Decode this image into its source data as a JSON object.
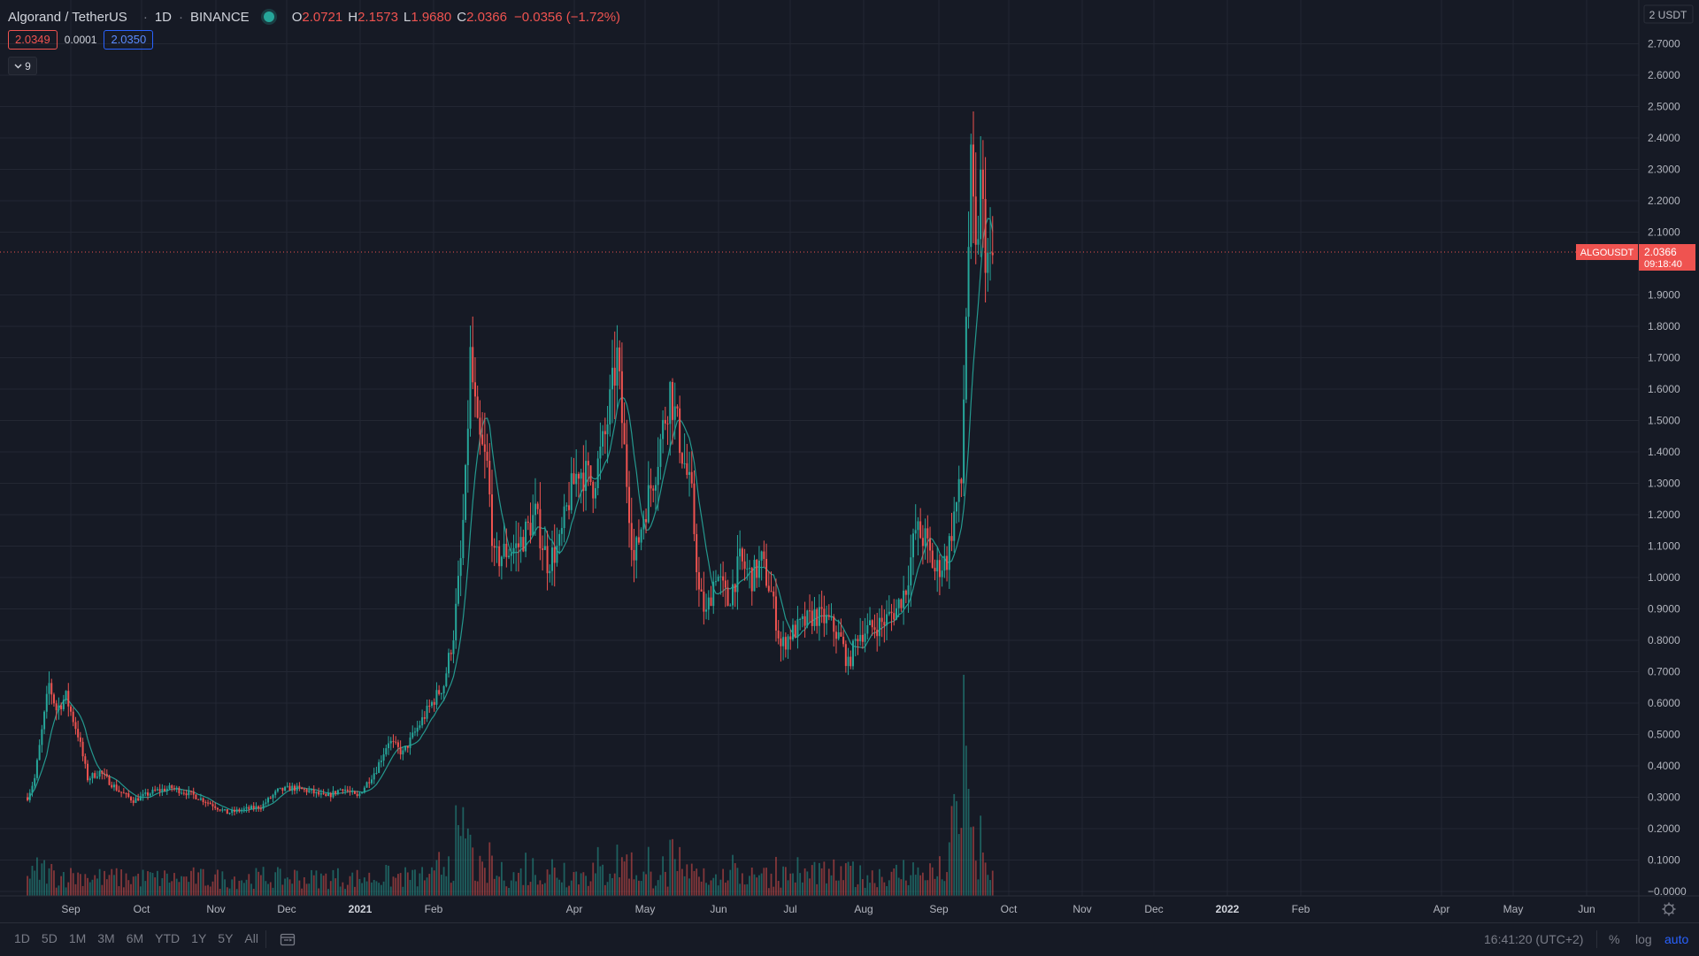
{
  "legend": {
    "symbol": "Algorand / TetherUS",
    "interval": "1D",
    "exchange": "BINANCE",
    "o_label": "O",
    "o": "2.0721",
    "h_label": "H",
    "h": "2.1573",
    "l_label": "L",
    "l": "1.9680",
    "c_label": "C",
    "c": "2.0366",
    "change": "−0.0356 (−1.72%)"
  },
  "quote": {
    "bid": "2.0349",
    "spread": "0.0001",
    "ask": "2.0350"
  },
  "indicators_toggle": {
    "icon": "chevron-down-icon",
    "count": "9"
  },
  "bottom_bar": {
    "ranges": [
      "1D",
      "5D",
      "1M",
      "3M",
      "6M",
      "YTD",
      "1Y",
      "5Y",
      "All"
    ],
    "clock": "16:41:20 (UTC+2)",
    "percent": "%",
    "log": "log",
    "auto": "auto"
  },
  "colors": {
    "background": "#161a25",
    "grid": "#232733",
    "up": "#26a69a",
    "down": "#ef5350",
    "ma": "#26a69a",
    "volume_up": "rgba(38,166,154,0.5)",
    "volume_down": "rgba(239,83,80,0.5)",
    "text": "#b2b5be",
    "accent": "#2962ff"
  },
  "chart_data": {
    "type": "candlestick",
    "symbol": "ALGOUSDT",
    "currency_label": "2 USDT",
    "y_ticks": [
      "2.7000",
      "2.6000",
      "2.5000",
      "2.4000",
      "2.3000",
      "2.2000",
      "2.1000",
      "1.9000",
      "1.8000",
      "1.7000",
      "1.6000",
      "1.5000",
      "1.4000",
      "1.3000",
      "1.2000",
      "1.1000",
      "1.0000",
      "0.9000",
      "0.8000",
      "0.7000",
      "0.6000",
      "0.5000",
      "0.4000",
      "0.3000",
      "0.2000",
      "0.1000",
      "−0.0000"
    ],
    "x_ticks": [
      "Sep",
      "Oct",
      "Nov",
      "Dec",
      "2021",
      "Feb",
      "Apr",
      "May",
      "Jun",
      "Jul",
      "Aug",
      "Sep",
      "Oct",
      "Nov",
      "Dec",
      "2022",
      "Feb",
      "Apr",
      "May",
      "Jun"
    ],
    "ylim": [
      -0.0,
      2.79
    ],
    "last_price": {
      "value": 2.0366,
      "label": "ALGOUSDT",
      "price_text": "2.0366",
      "countdown": "09:18:40"
    },
    "price_path": [
      [
        "2020-08-13",
        0.3
      ],
      [
        "2020-08-16",
        0.36
      ],
      [
        "2020-08-20",
        0.56
      ],
      [
        "2020-08-22",
        0.66
      ],
      [
        "2020-08-25",
        0.58
      ],
      [
        "2020-08-29",
        0.62
      ],
      [
        "2020-09-03",
        0.5
      ],
      [
        "2020-09-07",
        0.36
      ],
      [
        "2020-09-12",
        0.38
      ],
      [
        "2020-09-20",
        0.32
      ],
      [
        "2020-09-26",
        0.29
      ],
      [
        "2020-10-05",
        0.32
      ],
      [
        "2020-10-12",
        0.33
      ],
      [
        "2020-10-20",
        0.31
      ],
      [
        "2020-10-28",
        0.28
      ],
      [
        "2020-11-04",
        0.25
      ],
      [
        "2020-11-10",
        0.26
      ],
      [
        "2020-11-18",
        0.27
      ],
      [
        "2020-11-25",
        0.32
      ],
      [
        "2020-12-01",
        0.33
      ],
      [
        "2020-12-08",
        0.32
      ],
      [
        "2020-12-15",
        0.3
      ],
      [
        "2020-12-22",
        0.33
      ],
      [
        "2020-12-28",
        0.3
      ],
      [
        "2021-01-05",
        0.39
      ],
      [
        "2021-01-10",
        0.48
      ],
      [
        "2021-01-16",
        0.44
      ],
      [
        "2021-01-22",
        0.52
      ],
      [
        "2021-01-28",
        0.6
      ],
      [
        "2021-02-02",
        0.66
      ],
      [
        "2021-02-06",
        0.82
      ],
      [
        "2021-02-09",
        1.05
      ],
      [
        "2021-02-11",
        1.3
      ],
      [
        "2021-02-13",
        1.7
      ],
      [
        "2021-02-16",
        1.45
      ],
      [
        "2021-02-20",
        1.35
      ],
      [
        "2021-02-23",
        1.05
      ],
      [
        "2021-02-27",
        1.08
      ],
      [
        "2021-03-05",
        1.1
      ],
      [
        "2021-03-12",
        1.2
      ],
      [
        "2021-03-17",
        1.05
      ],
      [
        "2021-03-22",
        1.1
      ],
      [
        "2021-03-26",
        1.25
      ],
      [
        "2021-03-30",
        1.35
      ],
      [
        "2021-04-05",
        1.3
      ],
      [
        "2021-04-10",
        1.45
      ],
      [
        "2021-04-15",
        1.7
      ],
      [
        "2021-04-18",
        1.4
      ],
      [
        "2021-04-22",
        1.05
      ],
      [
        "2021-04-26",
        1.2
      ],
      [
        "2021-05-01",
        1.35
      ],
      [
        "2021-05-07",
        1.6
      ],
      [
        "2021-05-12",
        1.4
      ],
      [
        "2021-05-16",
        1.25
      ],
      [
        "2021-05-19",
        0.95
      ],
      [
        "2021-05-22",
        0.88
      ],
      [
        "2021-05-26",
        1.02
      ],
      [
        "2021-05-31",
        0.92
      ],
      [
        "2021-06-05",
        1.05
      ],
      [
        "2021-06-10",
        1.0
      ],
      [
        "2021-06-14",
        1.05
      ],
      [
        "2021-06-18",
        0.95
      ],
      [
        "2021-06-22",
        0.78
      ],
      [
        "2021-06-26",
        0.82
      ],
      [
        "2021-07-01",
        0.85
      ],
      [
        "2021-07-06",
        0.88
      ],
      [
        "2021-07-12",
        0.86
      ],
      [
        "2021-07-17",
        0.8
      ],
      [
        "2021-07-20",
        0.72
      ],
      [
        "2021-07-24",
        0.82
      ],
      [
        "2021-07-30",
        0.84
      ],
      [
        "2021-08-04",
        0.86
      ],
      [
        "2021-08-09",
        0.9
      ],
      [
        "2021-08-13",
        0.97
      ],
      [
        "2021-08-17",
        1.15
      ],
      [
        "2021-08-21",
        1.12
      ],
      [
        "2021-08-25",
        1.02
      ],
      [
        "2021-08-30",
        1.06
      ],
      [
        "2021-09-02",
        1.2
      ],
      [
        "2021-09-05",
        1.3
      ],
      [
        "2021-09-07",
        1.85
      ],
      [
        "2021-09-09",
        2.28
      ],
      [
        "2021-09-11",
        2.0
      ],
      [
        "2021-09-13",
        2.25
      ],
      [
        "2021-09-15",
        2.05
      ],
      [
        "2021-09-17",
        1.98
      ],
      [
        "2021-09-19",
        2.04
      ]
    ]
  }
}
